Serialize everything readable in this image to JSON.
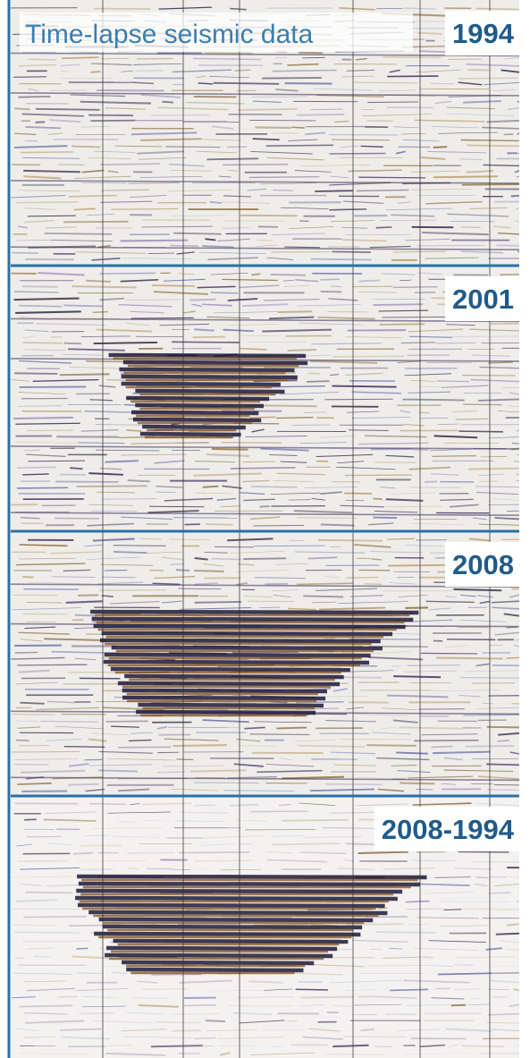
{
  "title": "Time-lapse seismic data",
  "panels": [
    {
      "label": "1994"
    },
    {
      "label": "2001"
    },
    {
      "label": "2008"
    },
    {
      "label": "2008-1994"
    }
  ]
}
